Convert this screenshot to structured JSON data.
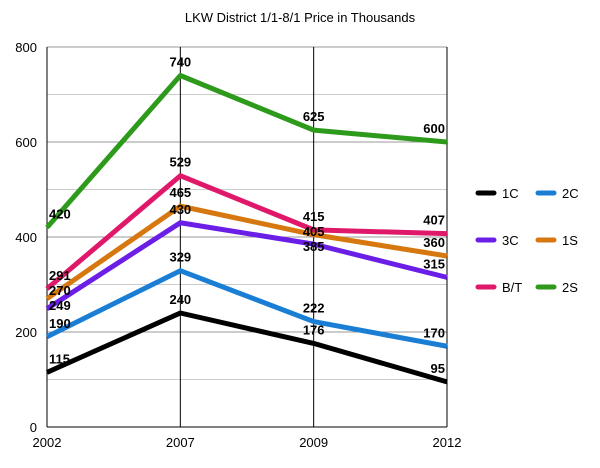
{
  "chart_data": {
    "type": "line",
    "title": "LKW District 1/1-8/1 Price in Thousands",
    "xlabel": "",
    "ylabel": "",
    "categories": [
      "2002",
      "2007",
      "2009",
      "2012"
    ],
    "ylim": [
      0,
      800
    ],
    "yticks": [
      0,
      200,
      400,
      600,
      800
    ],
    "grid": true,
    "legend_position": "right",
    "series": [
      {
        "name": "1C",
        "color": "#000000",
        "values": [
          115,
          240,
          176,
          95
        ]
      },
      {
        "name": "2C",
        "color": "#1a7fd4",
        "values": [
          190,
          329,
          222,
          170
        ]
      },
      {
        "name": "3C",
        "color": "#6a1ee6",
        "values": [
          249,
          430,
          385,
          315
        ]
      },
      {
        "name": "1S",
        "color": "#d6780f",
        "values": [
          270,
          465,
          405,
          360
        ]
      },
      {
        "name": "B/T",
        "color": "#e0186a",
        "values": [
          291,
          529,
          415,
          407
        ]
      },
      {
        "name": "2S",
        "color": "#2e9a1c",
        "values": [
          420,
          740,
          625,
          600
        ]
      }
    ]
  }
}
